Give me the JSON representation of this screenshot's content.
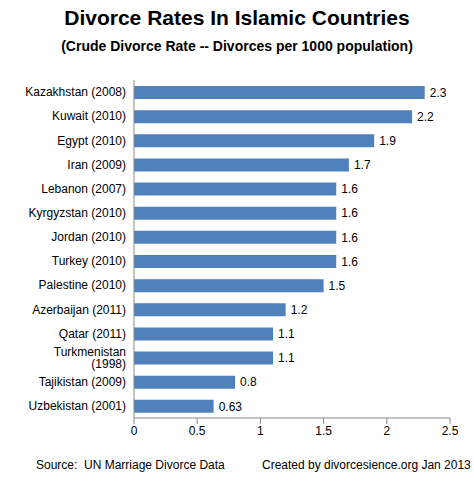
{
  "chart_data": {
    "type": "bar",
    "title": "Divorce Rates In Islamic Countries",
    "subtitle": "(Crude Divorce Rate -- Divorces per 1000 population)",
    "annotations": [
      "Source:  UN Marriage Divorce Data",
      "Created by divorcesience.org Jan 2013"
    ],
    "orientation": "horizontal",
    "categories": [
      "Kazakhstan (2008)",
      "Kuwait (2010)",
      "Egypt (2010)",
      "Iran (2009)",
      "Lebanon (2007)",
      "Kyrgyzstan (2010)",
      "Jordan (2010)",
      "Turkey (2010)",
      "Palestine (2010)",
      "Azerbaijan (2011)",
      "Qatar (2011)",
      "Turkmenistan (1998)",
      "Tajikistan (2009)",
      "Uzbekistan (2001)"
    ],
    "values": [
      2.3,
      2.2,
      1.9,
      1.7,
      1.6,
      1.6,
      1.6,
      1.6,
      1.5,
      1.2,
      1.1,
      1.1,
      0.8,
      0.63
    ],
    "color": "#4f81bd",
    "xlim": [
      0,
      2.5
    ],
    "xticks": [
      0,
      0.5,
      1,
      1.5,
      2,
      2.5
    ],
    "grid": false,
    "data_labels": true
  }
}
